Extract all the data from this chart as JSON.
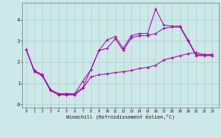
{
  "xlabel": "Windchill (Refroidissement éolien,°C)",
  "bg_color": "#cce8e8",
  "grid_color": "#aacccc",
  "line_color": "#aa00aa",
  "x_ticks": [
    0,
    1,
    2,
    3,
    4,
    5,
    6,
    7,
    8,
    9,
    10,
    11,
    12,
    13,
    14,
    15,
    16,
    17,
    18,
    19,
    20,
    21,
    22,
    23
  ],
  "y_ticks": [
    0,
    1,
    2,
    3,
    4
  ],
  "ylim": [
    -0.15,
    4.8
  ],
  "xlim": [
    -0.5,
    23.8
  ],
  "line1_x": [
    0,
    1,
    2,
    3,
    4,
    5,
    6,
    7,
    8,
    9,
    10,
    11,
    12,
    13,
    14,
    15,
    16,
    17,
    18,
    19,
    20,
    21,
    22,
    23
  ],
  "line1_y": [
    2.6,
    1.6,
    1.4,
    0.7,
    0.5,
    0.5,
    0.5,
    1.1,
    1.65,
    2.55,
    3.05,
    3.2,
    2.65,
    3.25,
    3.35,
    3.35,
    4.5,
    3.75,
    3.7,
    3.7,
    3.05,
    2.35,
    2.35,
    2.35
  ],
  "line2_x": [
    0,
    1,
    2,
    3,
    4,
    5,
    6,
    7,
    8,
    9,
    10,
    11,
    12,
    13,
    14,
    15,
    16,
    17,
    18,
    19,
    20,
    21,
    22,
    23
  ],
  "line2_y": [
    2.6,
    1.6,
    1.4,
    0.7,
    0.5,
    0.5,
    0.5,
    0.8,
    1.65,
    2.55,
    2.65,
    3.1,
    2.55,
    3.15,
    3.25,
    3.25,
    3.35,
    3.6,
    3.65,
    3.65,
    3.0,
    2.3,
    2.3,
    2.3
  ],
  "line3_x": [
    0,
    1,
    2,
    3,
    4,
    5,
    6,
    7,
    8,
    9,
    10,
    11,
    12,
    13,
    14,
    15,
    16,
    17,
    18,
    19,
    20,
    21,
    22,
    23
  ],
  "line3_y": [
    2.6,
    1.55,
    1.35,
    0.65,
    0.45,
    0.45,
    0.45,
    0.75,
    1.3,
    1.4,
    1.45,
    1.5,
    1.55,
    1.6,
    1.7,
    1.75,
    1.85,
    2.1,
    2.2,
    2.3,
    2.4,
    2.45,
    2.35,
    2.35
  ]
}
